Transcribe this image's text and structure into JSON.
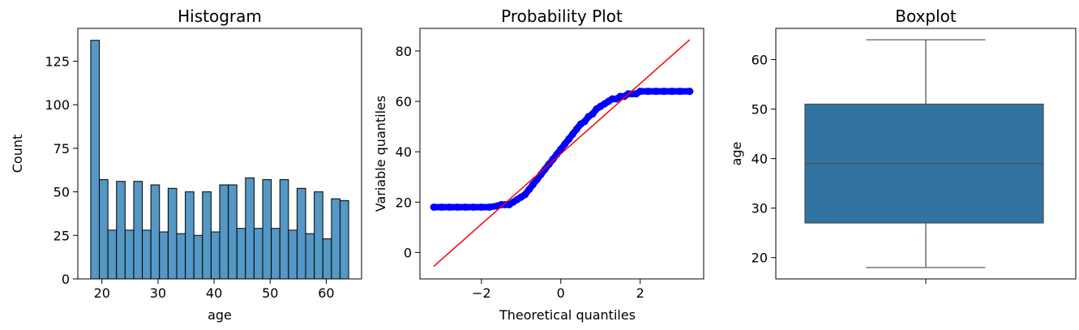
{
  "chart_data": [
    {
      "type": "bar",
      "title": "Histogram",
      "xlabel": "age",
      "ylabel": "Count",
      "bin_start": 18,
      "bin_width": 1.5333,
      "values": [
        137,
        57,
        28,
        56,
        28,
        56,
        28,
        54,
        27,
        52,
        26,
        50,
        25,
        50,
        27,
        54,
        54,
        29,
        58,
        29,
        57,
        29,
        57,
        28,
        52,
        26,
        50,
        23,
        46,
        45
      ],
      "xlim": [
        15.7,
        66.3
      ],
      "ylim": [
        0,
        143.85
      ],
      "xticks": [
        20,
        30,
        40,
        50,
        60
      ],
      "yticks": [
        0,
        25,
        50,
        75,
        100,
        125
      ],
      "bar_color": "#5597c5",
      "edge_color": "#000000",
      "grid": false
    },
    {
      "type": "scatter",
      "title": "Probability Plot",
      "xlabel": "Theoretical quantiles",
      "ylabel": "Variable quantiles",
      "xlim": [
        -3.55,
        3.6
      ],
      "ylim": [
        -10.5,
        89
      ],
      "xticks": [
        -2,
        0,
        2
      ],
      "yticks": [
        0,
        20,
        40,
        60,
        80
      ],
      "x": [
        -3.2,
        -3.0,
        -2.8,
        -2.6,
        -2.4,
        -2.2,
        -2.0,
        -1.8,
        -1.6,
        -1.5,
        -1.4,
        -1.3,
        -1.2,
        -1.1,
        -1.0,
        -0.9,
        -0.8,
        -0.7,
        -0.6,
        -0.5,
        -0.4,
        -0.3,
        -0.2,
        -0.1,
        0.0,
        0.1,
        0.2,
        0.3,
        0.4,
        0.5,
        0.6,
        0.7,
        0.8,
        0.9,
        1.0,
        1.1,
        1.2,
        1.3,
        1.4,
        1.5,
        1.6,
        1.7,
        1.8,
        1.9,
        2.0,
        2.2,
        2.4,
        2.6,
        2.8,
        3.0,
        3.25
      ],
      "y": [
        18,
        18,
        18,
        18,
        18,
        18,
        18,
        18,
        18.5,
        19,
        19,
        19,
        20,
        21,
        22,
        23,
        25,
        27,
        29,
        31,
        33,
        35,
        37,
        39,
        41,
        43,
        45,
        47,
        49,
        51,
        52,
        54,
        55,
        57,
        58,
        59,
        60,
        61,
        61,
        62,
        62,
        63,
        63,
        63,
        64,
        64,
        64,
        64,
        64,
        64,
        64
      ],
      "fit_line": {
        "x": [
          -3.2,
          3.25
        ],
        "y": [
          -5.5,
          84.5
        ]
      },
      "point_color": "#0000ff",
      "line_color": "#ff0000",
      "grid": false
    },
    {
      "type": "box",
      "title": "Boxplot",
      "xlabel": "",
      "ylabel": "age",
      "ylim": [
        15.7,
        66.3
      ],
      "yticks": [
        20,
        30,
        40,
        50,
        60
      ],
      "min": 18,
      "q1": 27,
      "median": 39,
      "q3": 51,
      "max": 64,
      "box_color": "#3274a1",
      "grid": false
    }
  ]
}
